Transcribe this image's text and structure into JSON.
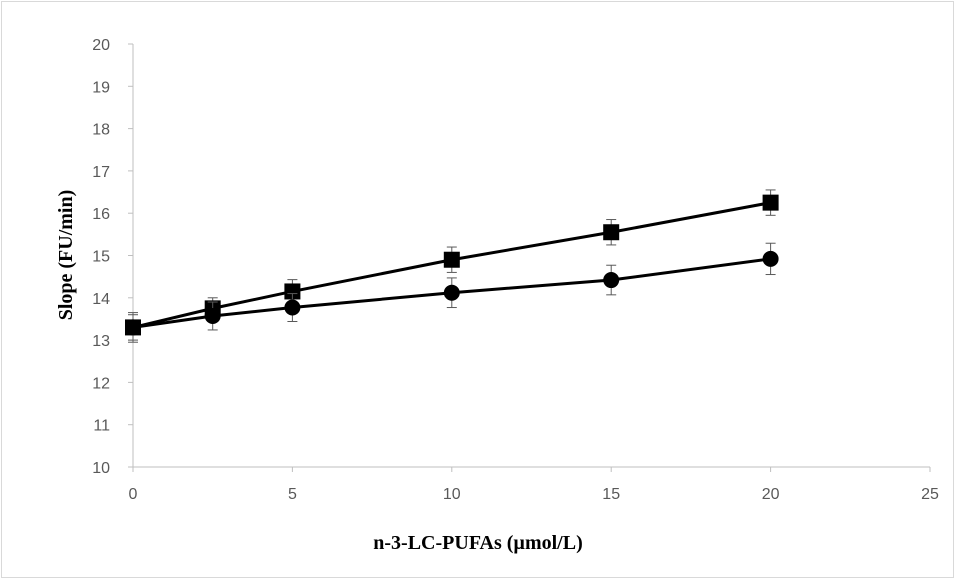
{
  "chart_data": {
    "type": "scatter",
    "title": "",
    "xlabel": "n-3-LC-PUFAs (µmol/L)",
    "ylabel": "Slope (FU/min)",
    "xlim": [
      0,
      25
    ],
    "ylim": [
      10,
      20
    ],
    "x_ticks": [
      0,
      5,
      10,
      15,
      20,
      25
    ],
    "y_ticks": [
      10,
      11,
      12,
      13,
      14,
      15,
      16,
      17,
      18,
      19,
      20
    ],
    "grid": false,
    "legend": "none",
    "series": [
      {
        "marker": "square",
        "color": "#000000",
        "x": [
          0,
          2.5,
          5,
          10,
          15,
          20
        ],
        "y": [
          13.3,
          13.75,
          14.15,
          14.9,
          15.55,
          16.25
        ],
        "error": [
          0.3,
          0.25,
          0.28,
          0.3,
          0.3,
          0.3
        ]
      },
      {
        "marker": "circle",
        "color": "#000000",
        "x": [
          0,
          2.5,
          5,
          10,
          15,
          20
        ],
        "y": [
          13.3,
          13.57,
          13.77,
          14.12,
          14.42,
          14.92
        ],
        "error": [
          0.35,
          0.33,
          0.33,
          0.35,
          0.35,
          0.37
        ]
      }
    ]
  }
}
